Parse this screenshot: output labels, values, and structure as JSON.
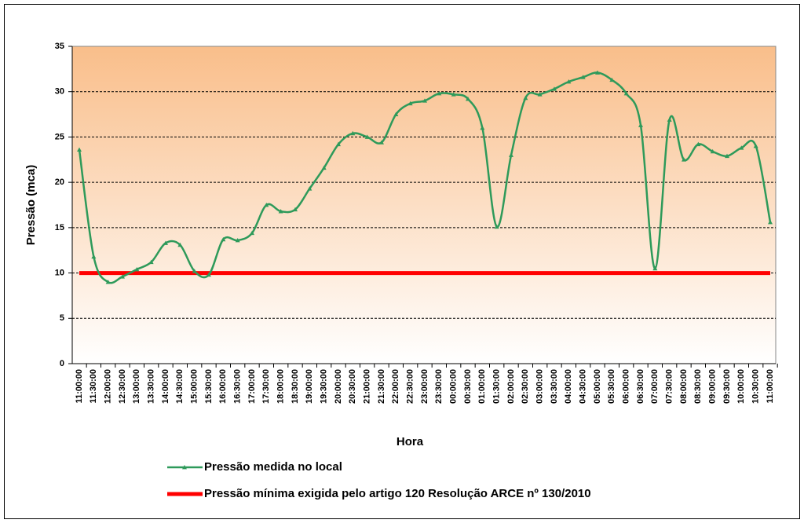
{
  "chart_data": {
    "type": "line",
    "x_label": "Hora",
    "y_label": "Pressão (mca)",
    "categories": [
      "11:00:00",
      "11:30:00",
      "12:00:00",
      "12:30:00",
      "13:00:00",
      "13:30:00",
      "14:00:00",
      "14:30:00",
      "15:00:00",
      "15:30:00",
      "16:00:00",
      "16:30:00",
      "17:00:00",
      "17:30:00",
      "18:00:00",
      "18:30:00",
      "19:00:00",
      "19:30:00",
      "20:00:00",
      "20:30:00",
      "21:00:00",
      "21:30:00",
      "22:00:00",
      "22:30:00",
      "23:00:00",
      "23:30:00",
      "00:00:00",
      "00:30:00",
      "01:00:00",
      "01:30:00",
      "02:00:00",
      "02:30:00",
      "03:00:00",
      "03:30:00",
      "04:00:00",
      "04:30:00",
      "05:00:00",
      "05:30:00",
      "06:00:00",
      "06:30:00",
      "07:00:00",
      "07:30:00",
      "08:00:00",
      "08:30:00",
      "09:00:00",
      "09:30:00",
      "10:00:00",
      "10:30:00",
      "11:00:00"
    ],
    "series": [
      {
        "name": "Pressão medida no local",
        "color": "#2e9a5a",
        "smooth": true,
        "marker": "triangle",
        "values": [
          23.6,
          11.8,
          9.0,
          9.6,
          10.4,
          11.2,
          13.3,
          13.1,
          10.2,
          9.8,
          13.7,
          13.6,
          14.4,
          17.5,
          16.8,
          17.0,
          19.3,
          21.6,
          24.2,
          25.4,
          25.0,
          24.4,
          27.5,
          28.7,
          29.0,
          29.8,
          29.7,
          29.2,
          26.0,
          15.1,
          23.0,
          29.3,
          29.7,
          30.3,
          31.1,
          31.6,
          32.1,
          31.3,
          29.8,
          26.3,
          10.5,
          26.9,
          22.5,
          24.2,
          23.4,
          22.9,
          23.8,
          24.0,
          15.6
        ]
      },
      {
        "name": "Pressão mínima exigida pelo artigo 120 Resolução ARCE nº 130/2010",
        "color": "#ff0000",
        "smooth": false,
        "marker": "none",
        "values": [
          10,
          10,
          10,
          10,
          10,
          10,
          10,
          10,
          10,
          10,
          10,
          10,
          10,
          10,
          10,
          10,
          10,
          10,
          10,
          10,
          10,
          10,
          10,
          10,
          10,
          10,
          10,
          10,
          10,
          10,
          10,
          10,
          10,
          10,
          10,
          10,
          10,
          10,
          10,
          10,
          10,
          10,
          10,
          10,
          10,
          10,
          10,
          10,
          10
        ]
      }
    ],
    "ylim": [
      0,
      35
    ],
    "yticks": [
      0,
      5,
      10,
      15,
      20,
      25,
      30,
      35
    ],
    "grid": true,
    "legend": "bottom"
  }
}
